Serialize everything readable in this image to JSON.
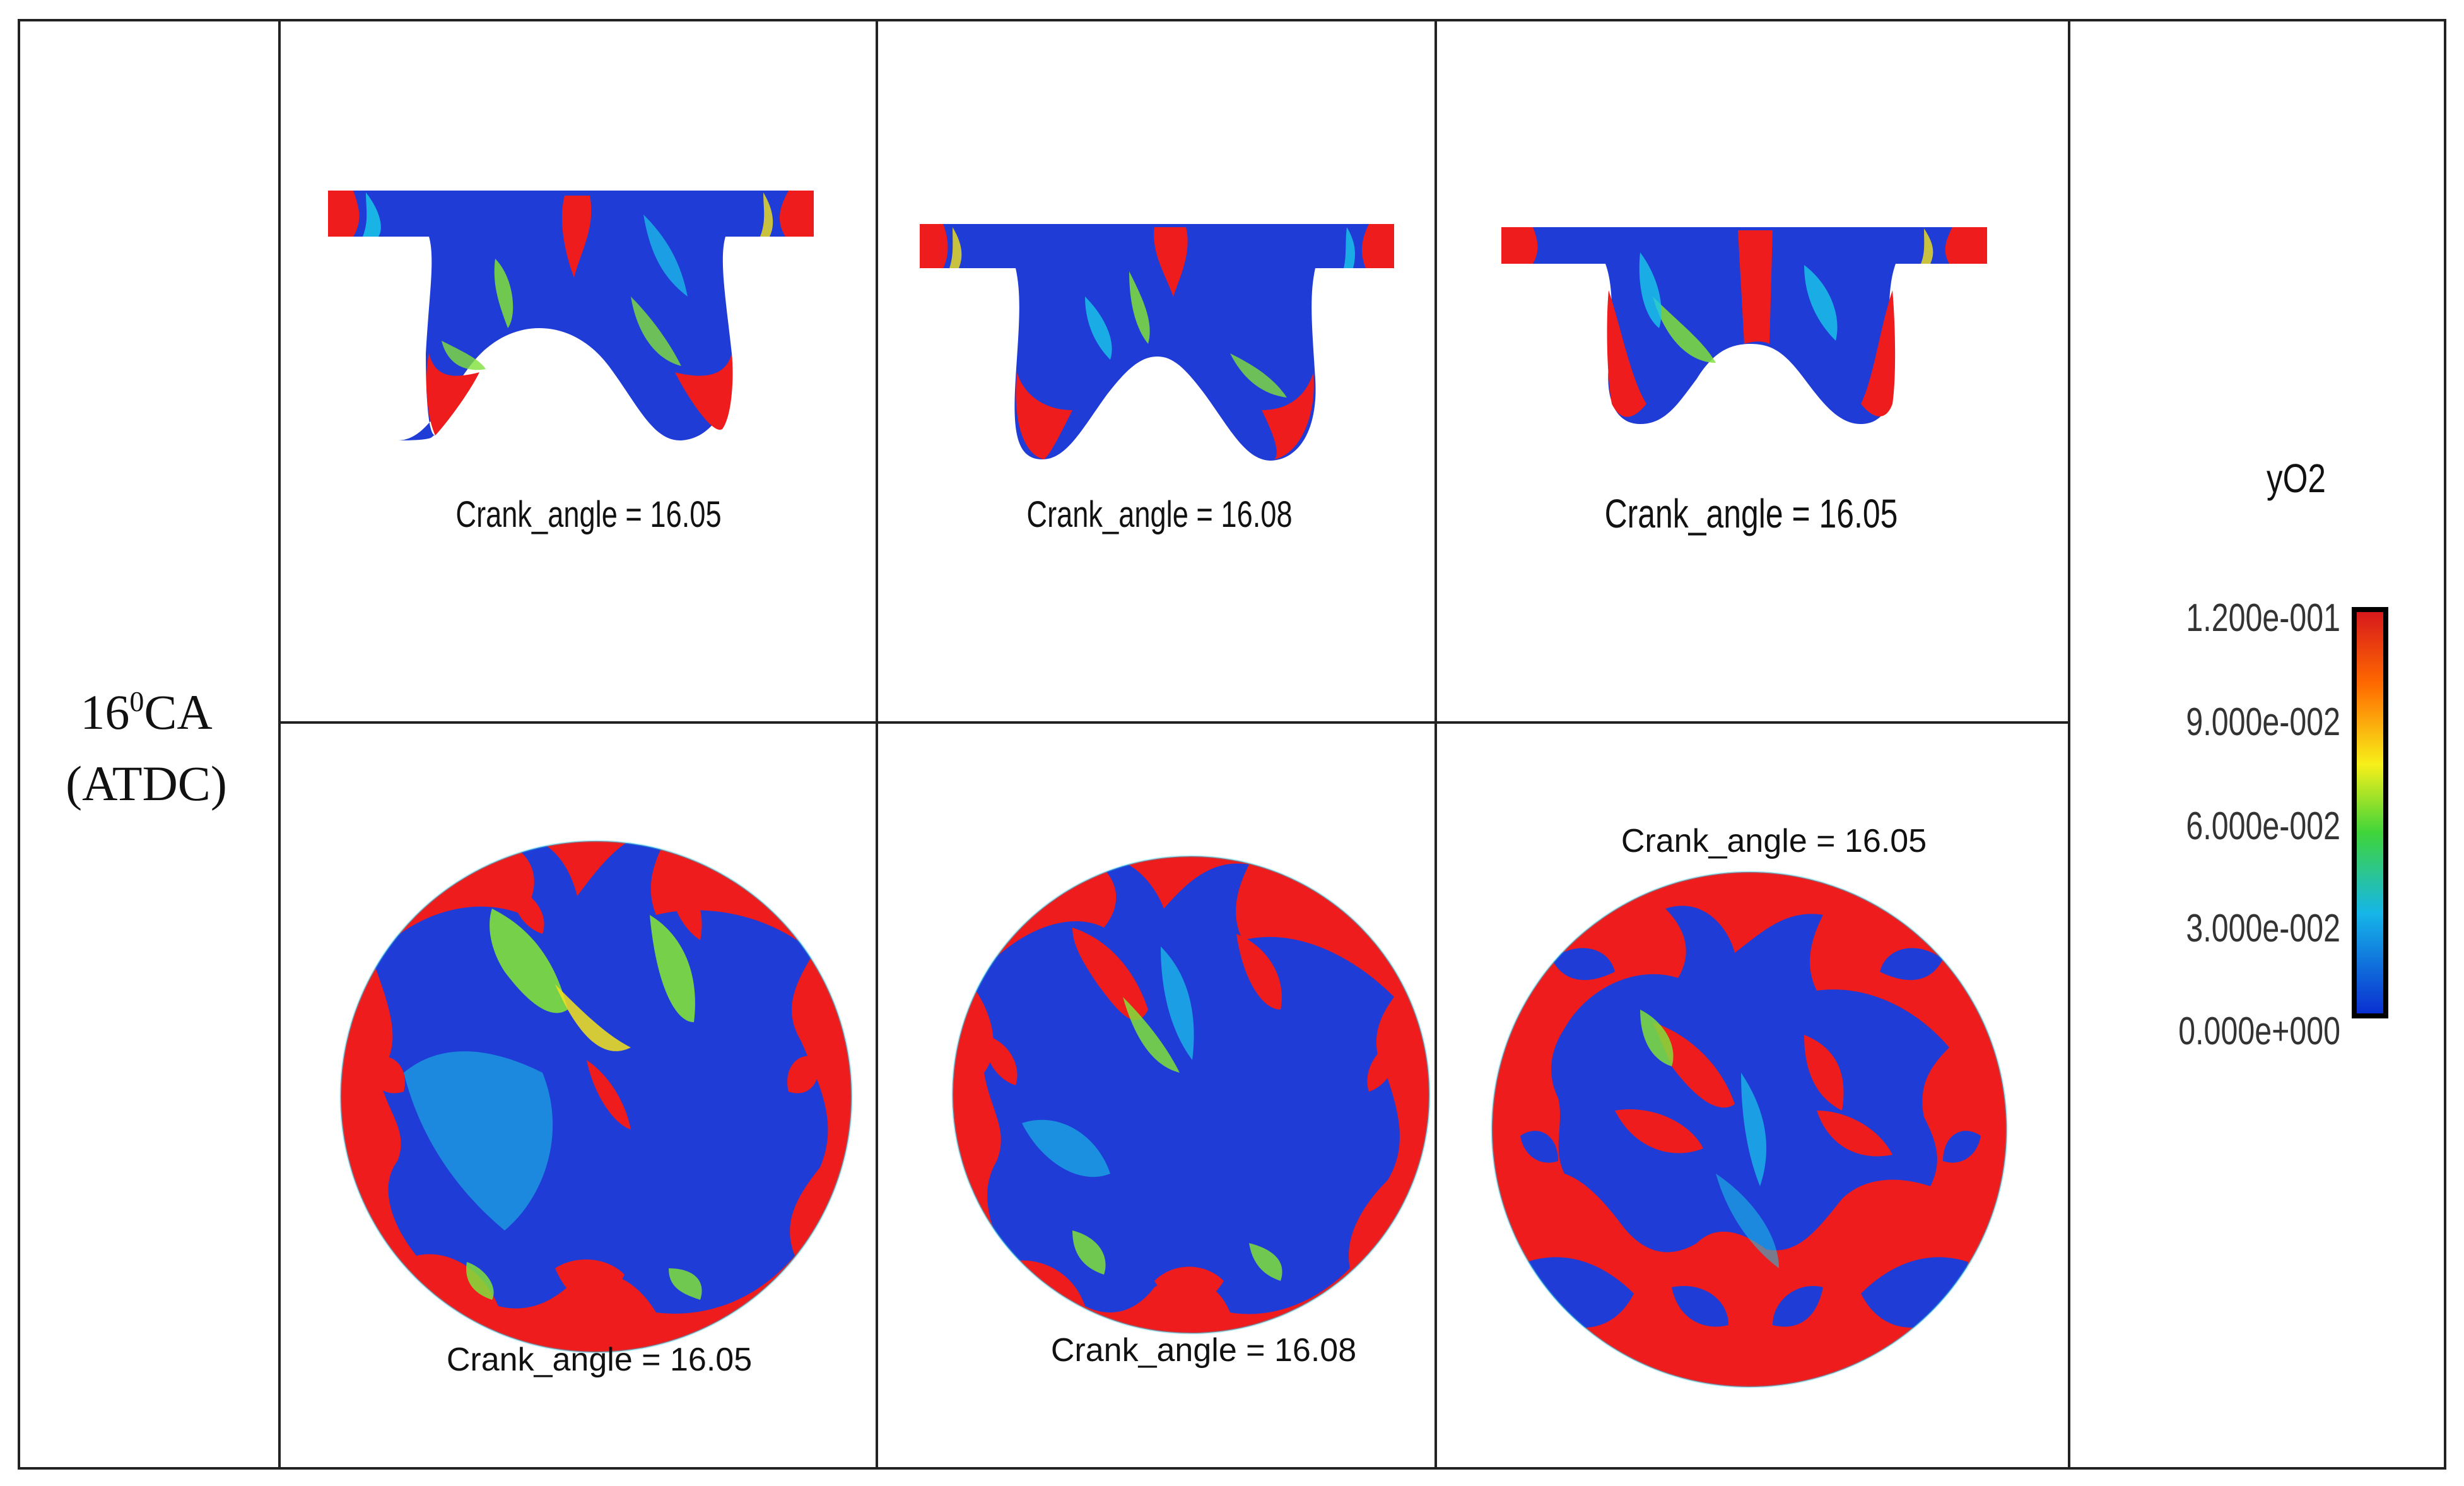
{
  "row_label": {
    "line1": "16",
    "sup": "0",
    "line1_suffix": "CA",
    "line2": "(ATDC)"
  },
  "panels": {
    "top": [
      {
        "caption": "Crank_angle = 16.05"
      },
      {
        "caption": "Crank_angle = 16.08"
      },
      {
        "caption": "Crank_angle = 16.05"
      }
    ],
    "bottom": [
      {
        "caption": "Crank_angle = 16.05"
      },
      {
        "caption": "Crank_angle = 16.08"
      },
      {
        "caption": "Crank_angle = 16.05"
      }
    ]
  },
  "legend": {
    "title": "yO2",
    "ticks": [
      "1.200e-001",
      "9.000e-002",
      "6.000e-002",
      "3.000e-002",
      "0.000e+000"
    ],
    "colors": [
      "#e31a1c",
      "#ff8c00",
      "#ffff00",
      "#33cc33",
      "#00bfff",
      "#0033cc"
    ]
  },
  "colors": {
    "red": "#ee1c1c",
    "blue": "#1f3cd6",
    "green": "#7fe03a",
    "cyan": "#19c8e8",
    "yellow": "#f4e21a",
    "orange": "#ff7a14",
    "border": "#222222"
  }
}
